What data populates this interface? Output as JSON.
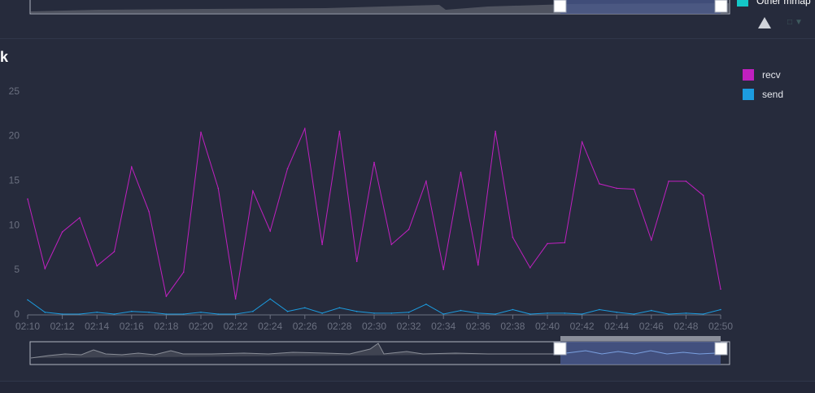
{
  "panel": {
    "title": "k"
  },
  "top_legend": {
    "label": "Other mmap",
    "color": "#14c8c8"
  },
  "colors": {
    "recv": "#c020c0",
    "send": "#1c9ce0",
    "grid": "#3a4054",
    "axis": "#6b7080",
    "zoom_fill": "#4a5a8e",
    "zoom_handle": "#ffffff"
  },
  "chart_data": {
    "type": "line",
    "x": [
      "02:10",
      "02:11",
      "02:12",
      "02:13",
      "02:14",
      "02:15",
      "02:16",
      "02:17",
      "02:18",
      "02:19",
      "02:20",
      "02:21",
      "02:22",
      "02:23",
      "02:24",
      "02:25",
      "02:26",
      "02:27",
      "02:28",
      "02:29",
      "02:30",
      "02:31",
      "02:32",
      "02:33",
      "02:34",
      "02:35",
      "02:36",
      "02:37",
      "02:38",
      "02:39",
      "02:40",
      "02:41",
      "02:42",
      "02:43",
      "02:44",
      "02:45",
      "02:46",
      "02:47",
      "02:48",
      "02:49",
      "02:50"
    ],
    "x_ticks": [
      "02:10",
      "02:12",
      "02:14",
      "02:16",
      "02:18",
      "02:20",
      "02:22",
      "02:24",
      "02:26",
      "02:28",
      "02:30",
      "02:32",
      "02:34",
      "02:36",
      "02:38",
      "02:40",
      "02:42",
      "02:44",
      "02:46",
      "02:48",
      "02:50"
    ],
    "y_ticks": [
      0,
      5,
      10,
      15,
      20,
      25
    ],
    "ylim": [
      0,
      27
    ],
    "series": [
      {
        "name": "recv",
        "values": [
          12.9,
          5.1,
          9.2,
          10.8,
          5.4,
          7.0,
          16.5,
          11.5,
          2.0,
          4.7,
          20.4,
          14.1,
          1.7,
          13.8,
          9.3,
          16.3,
          20.8,
          7.8,
          20.5,
          5.9,
          17.0,
          7.8,
          9.5,
          14.9,
          5.0,
          15.9,
          5.5,
          20.5,
          8.6,
          5.2,
          7.9,
          8.0,
          19.3,
          14.6,
          14.1,
          14.0,
          8.3,
          14.9,
          14.9,
          13.3,
          2.8
        ]
      },
      {
        "name": "send",
        "values": [
          1.6,
          0.2,
          0.0,
          0.0,
          0.2,
          0.0,
          0.3,
          0.2,
          0.0,
          0.0,
          0.2,
          0.0,
          0.0,
          0.3,
          1.7,
          0.3,
          0.7,
          0.1,
          0.7,
          0.3,
          0.1,
          0.1,
          0.2,
          1.1,
          0.0,
          0.4,
          0.1,
          0.0,
          0.5,
          0.0,
          0.1,
          0.1,
          0.0,
          0.5,
          0.2,
          0.0,
          0.4,
          0.0,
          0.1,
          0.0,
          0.5
        ]
      }
    ],
    "grid": false,
    "legend_position": "top-right"
  }
}
